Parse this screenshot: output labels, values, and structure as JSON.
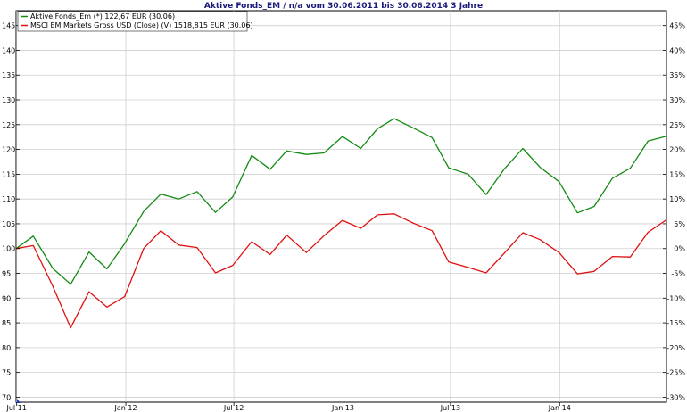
{
  "chart_data": {
    "type": "line",
    "title": "Aktive Fonds_EM / n/a vom 30.06.2011 bis 30.06.2014 3 Jahre",
    "x_ticks": [
      "Jul 11",
      "Jan 12",
      "Jul 12",
      "Jan 13",
      "Jul 13",
      "Jan 14"
    ],
    "x_range": [
      "2011-06-30",
      "2014-06-30"
    ],
    "x": [
      "2011-06-30",
      "2011-07-29",
      "2011-08-31",
      "2011-09-30",
      "2011-10-31",
      "2011-11-30",
      "2011-12-30",
      "2012-01-31",
      "2012-02-29",
      "2012-03-30",
      "2012-04-30",
      "2012-05-31",
      "2012-06-29",
      "2012-07-31",
      "2012-08-31",
      "2012-09-28",
      "2012-10-31",
      "2012-11-30",
      "2012-12-31",
      "2013-01-31",
      "2013-02-28",
      "2013-03-28",
      "2013-04-30",
      "2013-05-31",
      "2013-06-28",
      "2013-07-31",
      "2013-08-30",
      "2013-09-30",
      "2013-10-31",
      "2013-11-29",
      "2013-12-31",
      "2014-01-31",
      "2014-02-28",
      "2014-03-31",
      "2014-04-30",
      "2014-05-30",
      "2014-06-30"
    ],
    "left_axis": {
      "ticks": [
        70,
        75,
        80,
        85,
        90,
        95,
        100,
        105,
        110,
        115,
        120,
        125,
        130,
        135,
        140,
        145
      ],
      "ylim": [
        69,
        148
      ]
    },
    "right_axis": {
      "ticks": [
        "-30%",
        "-25%",
        "-20%",
        "-15%",
        "-10%",
        "-5%",
        "0%",
        "5%",
        "10%",
        "15%",
        "20%",
        "25%",
        "30%",
        "35%",
        "40%",
        "45%"
      ]
    },
    "grid": true,
    "legend_position": "top-left",
    "series": [
      {
        "name": "Aktive Fonds_Em (*) 122,67 EUR (30.06)",
        "color": "#138a13",
        "values": [
          100,
          102.5,
          96,
          92.8,
          99.3,
          95.9,
          101,
          107.5,
          111,
          110,
          111.5,
          107.3,
          110.4,
          118.8,
          116,
          119.7,
          119,
          119.3,
          122.6,
          120.2,
          124.2,
          126.2,
          124.3,
          122.4,
          116.3,
          115,
          110.9,
          116.1,
          120.2,
          116.4,
          113.5,
          107.2,
          108.5,
          114.2,
          116.2,
          121.7,
          122.67
        ]
      },
      {
        "name": "MSCI EM Markets Gross USD (Close) (V) 1518,815 EUR (30.06)",
        "color": "#e01010",
        "values": [
          100,
          100.6,
          92.4,
          84,
          91.3,
          88.2,
          90.3,
          100,
          103.6,
          100.7,
          100.2,
          95.1,
          96.6,
          101.4,
          98.8,
          102.7,
          99.2,
          102.6,
          105.7,
          104.1,
          106.8,
          107,
          105.1,
          103.6,
          97.3,
          96.2,
          95.1,
          99.1,
          103.2,
          101.8,
          99.2,
          94.9,
          95.4,
          98.4,
          98.3,
          103.3,
          105.8
        ]
      }
    ]
  }
}
